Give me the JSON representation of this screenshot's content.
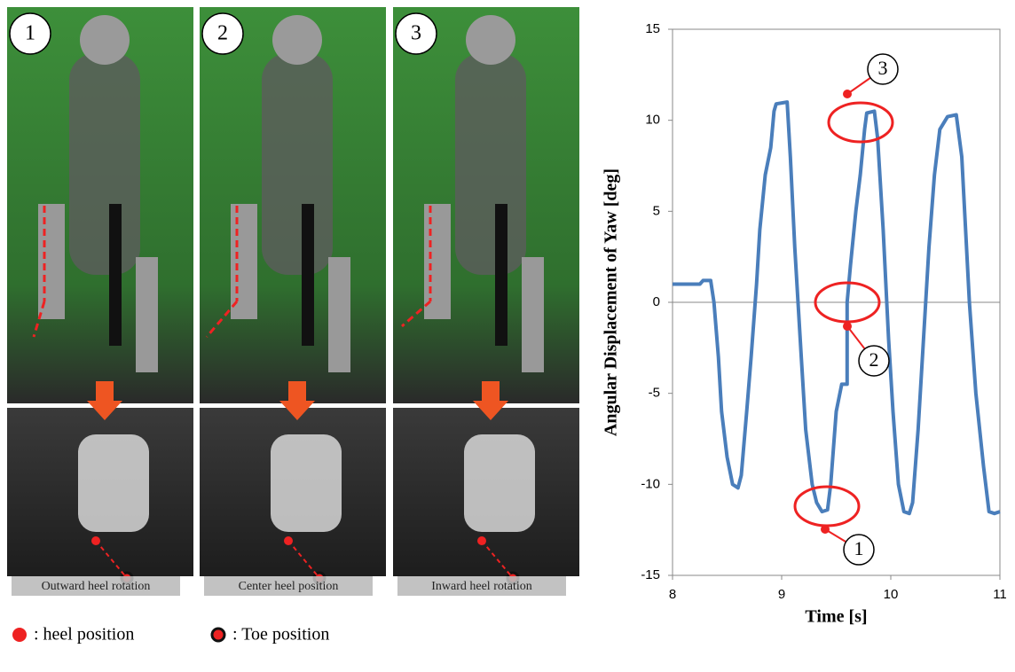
{
  "panels": {
    "numbers": [
      "1",
      "2",
      "3"
    ],
    "captions": [
      "Outward heel rotation",
      "Center heel position",
      "Inward heel rotation"
    ],
    "legend": [
      ": heel position",
      ": Toe position"
    ]
  },
  "chart_data": {
    "type": "line",
    "xlabel": "Time [s]",
    "ylabel": "Angular Displacement of Yaw [deg]",
    "xlim": [
      8,
      11
    ],
    "xticks": [
      8,
      9,
      10,
      11
    ],
    "ylim": [
      -15,
      15
    ],
    "yticks": [
      -15,
      -10,
      -5,
      0,
      5,
      10,
      15
    ],
    "annotations": [
      "1",
      "2",
      "3"
    ],
    "x": [
      8.0,
      8.25,
      8.28,
      8.35,
      8.38,
      8.42,
      8.45,
      8.5,
      8.55,
      8.6,
      8.63,
      8.68,
      8.72,
      8.77,
      8.8,
      8.85,
      8.9,
      8.93,
      8.95,
      9.05,
      9.08,
      9.12,
      9.18,
      9.22,
      9.28,
      9.32,
      9.37,
      9.42,
      9.45,
      9.5,
      9.55,
      9.6,
      9.6,
      9.63,
      9.68,
      9.72,
      9.76,
      9.78,
      9.85,
      9.88,
      9.93,
      9.98,
      10.02,
      10.07,
      10.12,
      10.17,
      10.2,
      10.25,
      10.3,
      10.35,
      10.4,
      10.45,
      10.52,
      10.6,
      10.65,
      10.72,
      10.78,
      10.85,
      10.9,
      10.95,
      11.0
    ],
    "series": [
      {
        "color": "#4a7ebb",
        "values": [
          1,
          1,
          1.2,
          1.2,
          0,
          -3,
          -6,
          -8.5,
          -10,
          -10.2,
          -9.5,
          -6,
          -3,
          1,
          4,
          7,
          8.5,
          10.5,
          10.9,
          11,
          8,
          3,
          -3,
          -7,
          -10,
          -11,
          -11.5,
          -11.4,
          -10,
          -6,
          -4.5,
          -4.5,
          0,
          2,
          5,
          7,
          9.5,
          10.4,
          10.5,
          9,
          4,
          -2,
          -6,
          -10,
          -11.5,
          -11.6,
          -11,
          -7,
          -2,
          3,
          7,
          9.5,
          10.2,
          10.3,
          8,
          0,
          -5,
          -9,
          -11.5,
          -11.6,
          -11.5
        ]
      }
    ]
  }
}
